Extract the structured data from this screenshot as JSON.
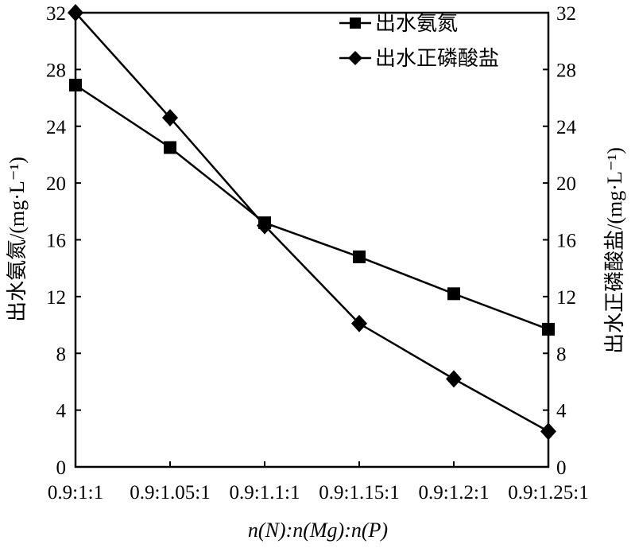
{
  "chart_data": {
    "type": "line",
    "categories": [
      "0.9:1:1",
      "0.9:1.05:1",
      "0.9:1.1:1",
      "0.9:1.15:1",
      "0.9:1.2:1",
      "0.9:1.25:1"
    ],
    "series": [
      {
        "name": "出水氨氮",
        "axis": "left",
        "marker": "square",
        "values": [
          26.9,
          22.5,
          17.2,
          14.8,
          12.2,
          9.7
        ]
      },
      {
        "name": "出水正磷酸盐",
        "axis": "right",
        "marker": "diamond",
        "values": [
          32.0,
          24.6,
          17.0,
          10.1,
          6.2,
          2.5
        ]
      }
    ],
    "xlabel": "n(N):n(Mg):n(P)",
    "ylabel_left": "出水氨氮/(mg·L⁻¹)",
    "ylabel_right": "出水正磷酸盐/(mg·L⁻¹)",
    "ylim": [
      0,
      32
    ],
    "yticks": [
      0,
      4,
      8,
      12,
      16,
      20,
      24,
      28,
      32
    ],
    "grid": false,
    "legend_position": "top-right",
    "color": "#000000"
  }
}
